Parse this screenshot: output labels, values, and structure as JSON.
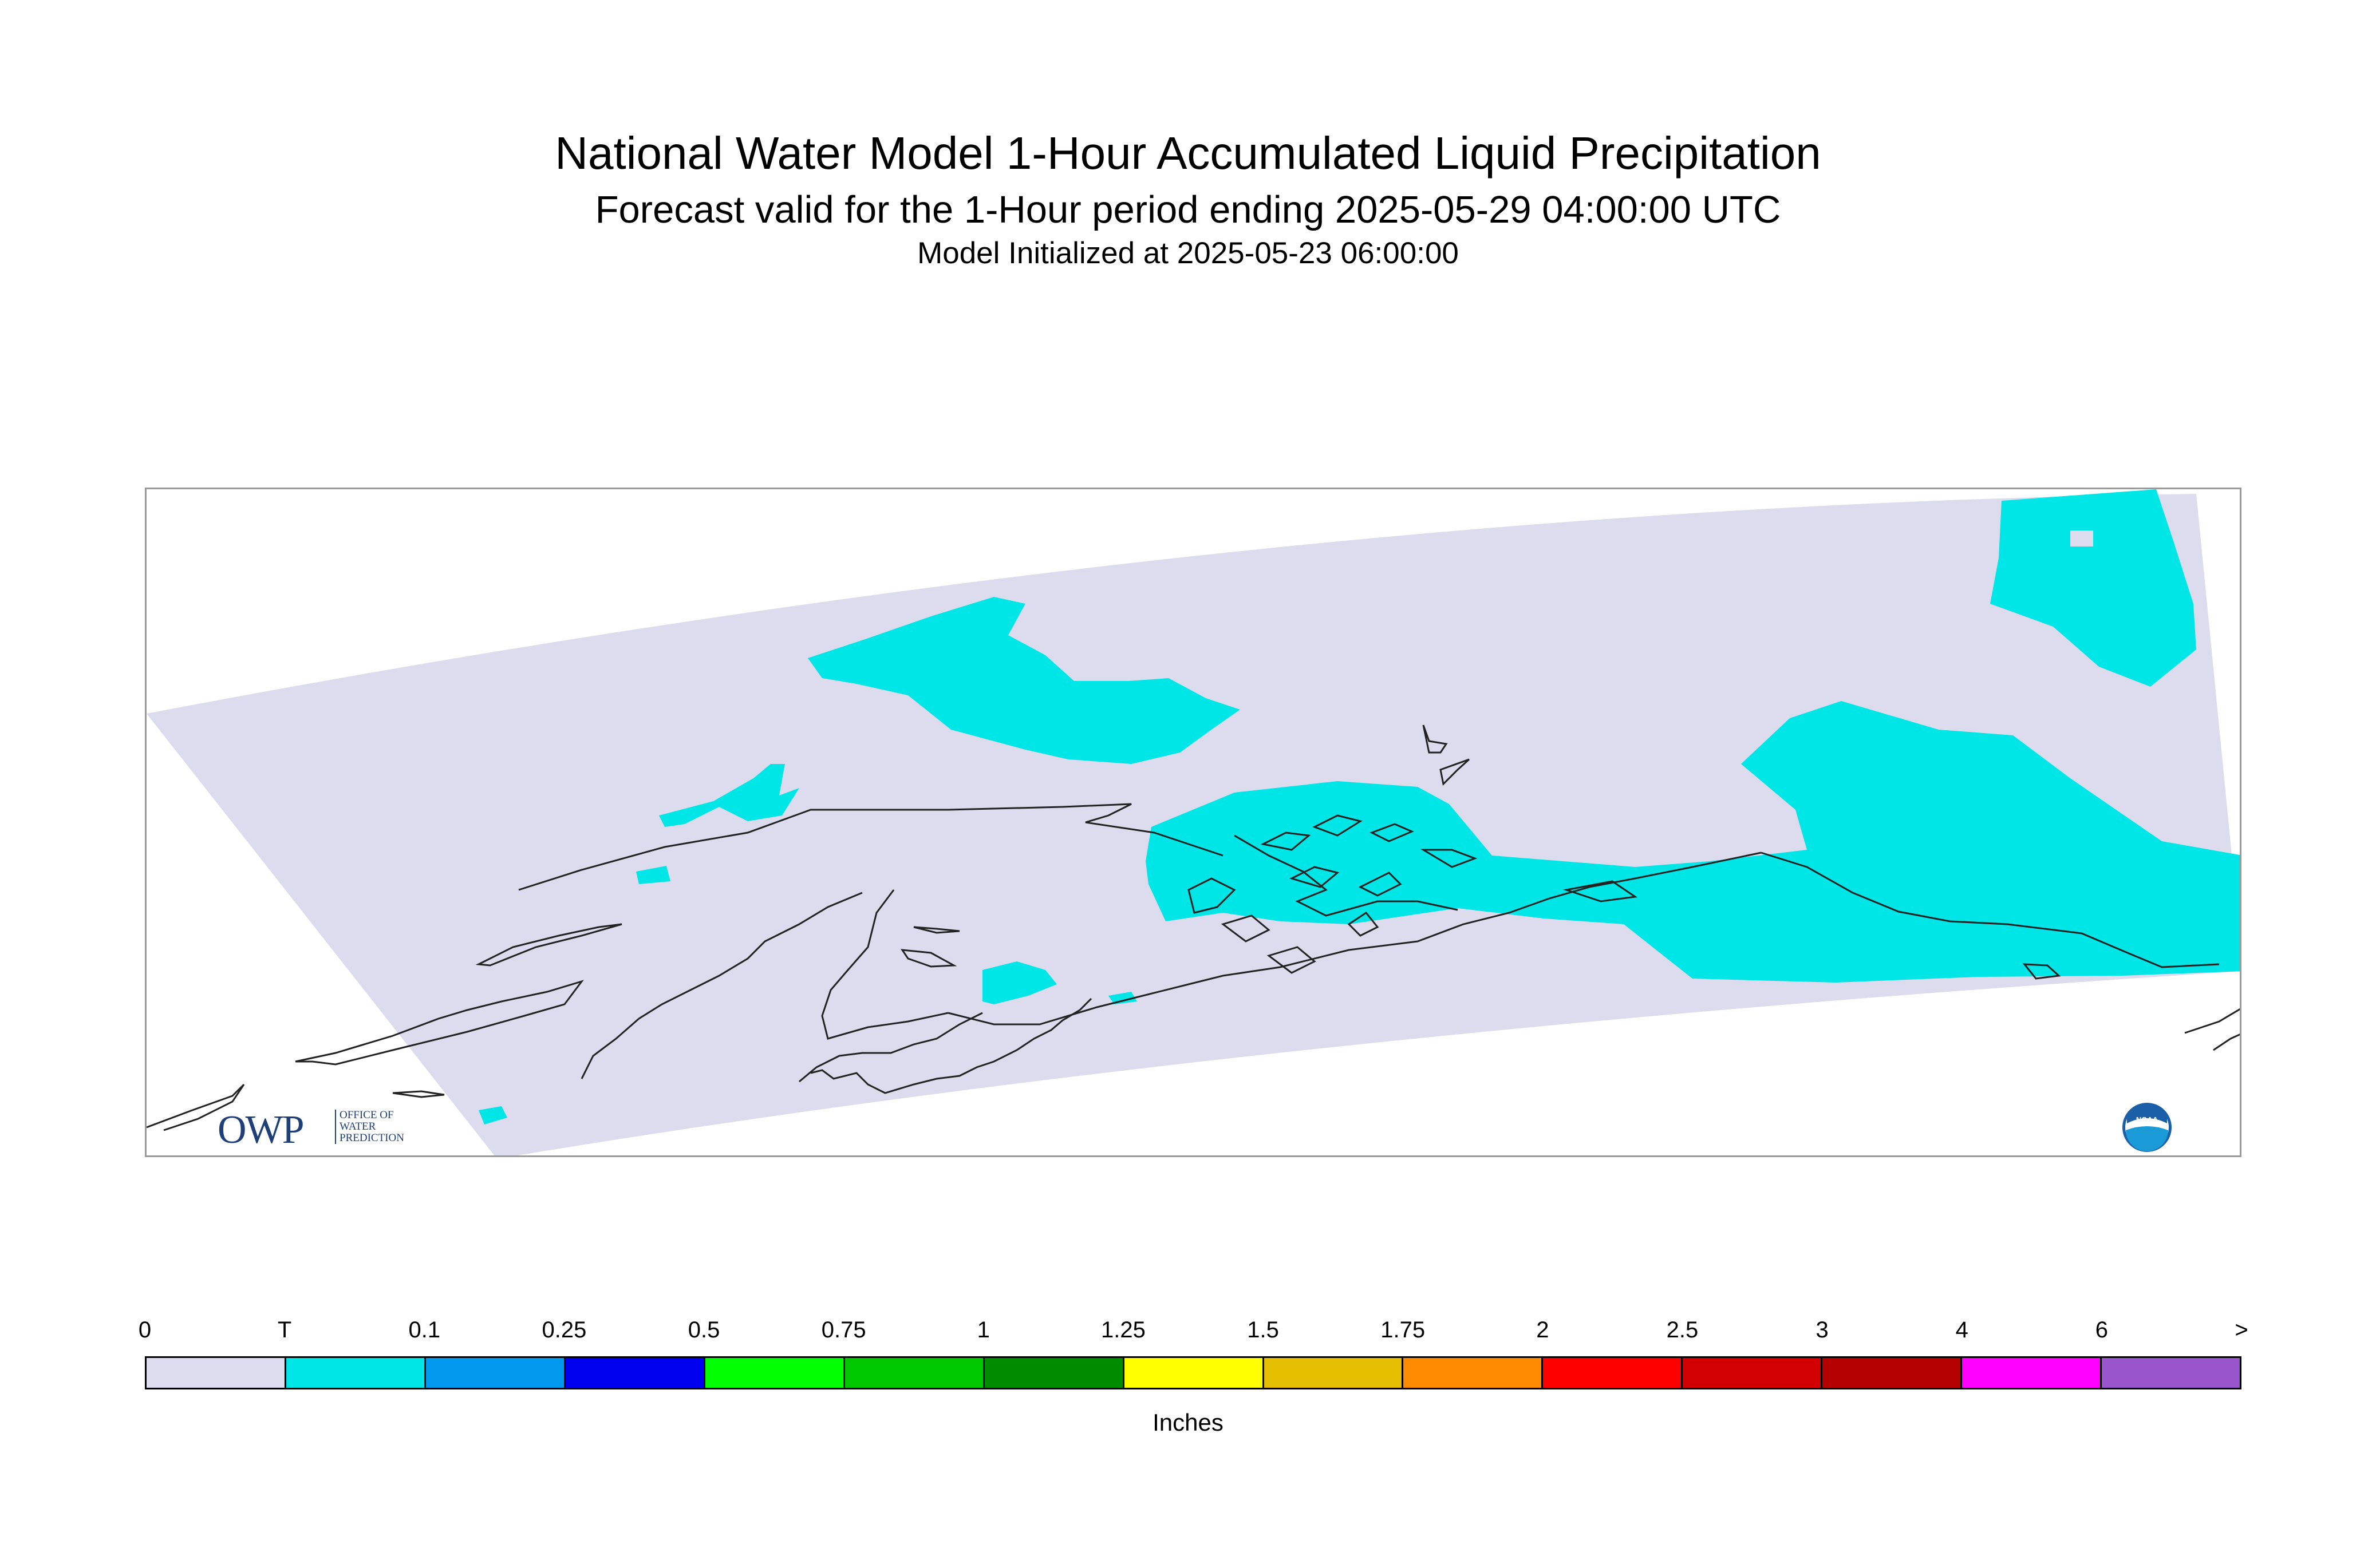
{
  "header": {
    "title": "National Water Model 1-Hour Accumulated Liquid Precipitation",
    "subtitle": "Forecast valid for the 1-Hour period ending 2025-05-29 04:00:00 UTC",
    "init": "Model Initialized at 2025-05-23 06:00:00"
  },
  "map": {
    "region": "Alaska",
    "background_fill": "#dcdcee",
    "precip_fill": "#00e5e5",
    "coastline_color": "#222222"
  },
  "logos": {
    "owp_letters": "OWP",
    "owp_text_lines": [
      "OFFICE OF",
      "WATER",
      "PREDICTION"
    ],
    "noaa_text": "NOAA"
  },
  "legend": {
    "labels": [
      "0",
      "T",
      "0.1",
      "0.25",
      "0.5",
      "0.75",
      "1",
      "1.25",
      "1.5",
      "1.75",
      "2",
      "2.5",
      "3",
      "4",
      "6",
      ">"
    ],
    "colors": [
      "#dcdcee",
      "#00e5e5",
      "#0099ee",
      "#0000ee",
      "#00ff00",
      "#00c800",
      "#008c00",
      "#ffff00",
      "#e6c000",
      "#ff8c00",
      "#ff0000",
      "#d20000",
      "#b40000",
      "#ff00ff",
      "#9955cc"
    ],
    "units": "Inches"
  }
}
